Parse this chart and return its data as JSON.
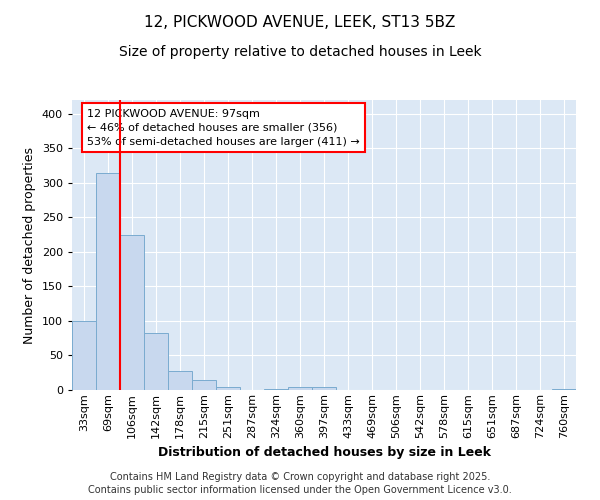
{
  "title1": "12, PICKWOOD AVENUE, LEEK, ST13 5BZ",
  "title2": "Size of property relative to detached houses in Leek",
  "xlabel": "Distribution of detached houses by size in Leek",
  "ylabel": "Number of detached properties",
  "categories": [
    "33sqm",
    "69sqm",
    "106sqm",
    "142sqm",
    "178sqm",
    "215sqm",
    "251sqm",
    "287sqm",
    "324sqm",
    "360sqm",
    "397sqm",
    "433sqm",
    "469sqm",
    "506sqm",
    "542sqm",
    "578sqm",
    "615sqm",
    "651sqm",
    "687sqm",
    "724sqm",
    "760sqm"
  ],
  "values": [
    100,
    315,
    225,
    82,
    28,
    14,
    5,
    0,
    1,
    5,
    5,
    0,
    0,
    0,
    0,
    0,
    0,
    0,
    0,
    0,
    2
  ],
  "bar_color": "#c8d8ee",
  "bar_edge_color": "#7aabcf",
  "red_line_x": 1.5,
  "annotation_text": "12 PICKWOOD AVENUE: 97sqm\n← 46% of detached houses are smaller (356)\n53% of semi-detached houses are larger (411) →",
  "annotation_box_color": "white",
  "annotation_edge_color": "red",
  "ylim": [
    0,
    420
  ],
  "yticks": [
    0,
    50,
    100,
    150,
    200,
    250,
    300,
    350,
    400
  ],
  "footer": "Contains HM Land Registry data © Crown copyright and database right 2025.\nContains public sector information licensed under the Open Government Licence v3.0.",
  "fig_bg_color": "#ffffff",
  "plot_bg_color": "#dce8f5",
  "grid_color": "#ffffff",
  "title_fontsize": 11,
  "subtitle_fontsize": 10,
  "label_fontsize": 9,
  "tick_fontsize": 8,
  "footer_fontsize": 7,
  "annotation_fontsize": 8
}
